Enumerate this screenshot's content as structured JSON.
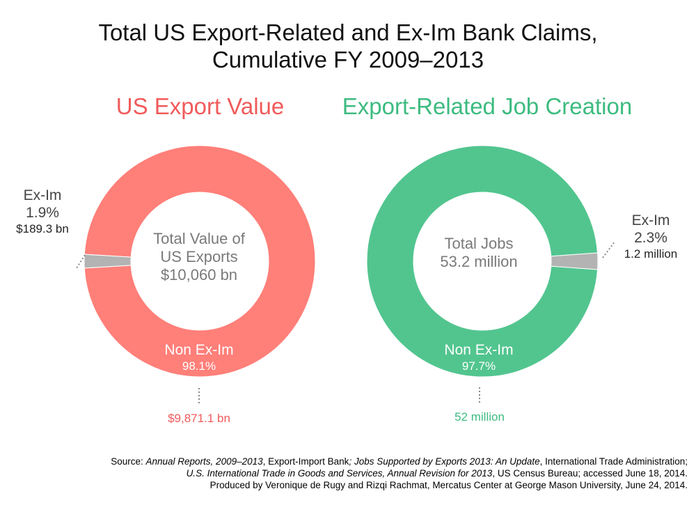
{
  "title_line1": "Total US Export-Related and Ex-Im Bank Claims,",
  "title_line2": "Cumulative FY 2009–2013",
  "chart_data": [
    {
      "type": "pie",
      "title": "US Export Value",
      "title_color": "#f05a5a",
      "center_label_line1": "Total Value of",
      "center_label_line2": "US Exports",
      "center_label_line3": "$10,060 bn",
      "categories": [
        "Non Ex-Im",
        "Ex-Im"
      ],
      "values": [
        98.1,
        1.9
      ],
      "percent_labels": [
        "98.1%",
        "1.9%"
      ],
      "amount_labels": [
        "$9,871.1 bn",
        "$189.3 bn"
      ],
      "colors": [
        "#ff7f79",
        "#b3b3b3"
      ],
      "amount_color": "#f05a5a"
    },
    {
      "type": "pie",
      "title": "Export-Related Job Creation",
      "title_color": "#3dbb80",
      "center_label_line1": "Total Jobs",
      "center_label_line2": "53.2 million",
      "categories": [
        "Non Ex-Im",
        "Ex-Im"
      ],
      "values": [
        97.7,
        2.3
      ],
      "percent_labels": [
        "97.7%",
        "2.3%"
      ],
      "amount_labels": [
        "52 million",
        "1.2 million"
      ],
      "colors": [
        "#52c58f",
        "#b3b3b3"
      ],
      "amount_color": "#3dbb80"
    }
  ],
  "footer": {
    "line1_a": "Source: ",
    "line1_b": "Annual Reports, 2009–2013",
    "line1_c": ", Export-Import Bank",
    "line1_d": "; Jobs Supported by Exports 2013: An Update",
    "line1_e": ", International Trade Administration;",
    "line2_a": "U.S. International Trade in Goods and Services, Annual Revision for 2013",
    "line2_b": ", US Census Bureau; accessed June 18, 2014.",
    "line3": "Produced by Veronique de Rugy and Rizqi Rachmat, Mercatus Center at George Mason University, June 24, 2014."
  }
}
